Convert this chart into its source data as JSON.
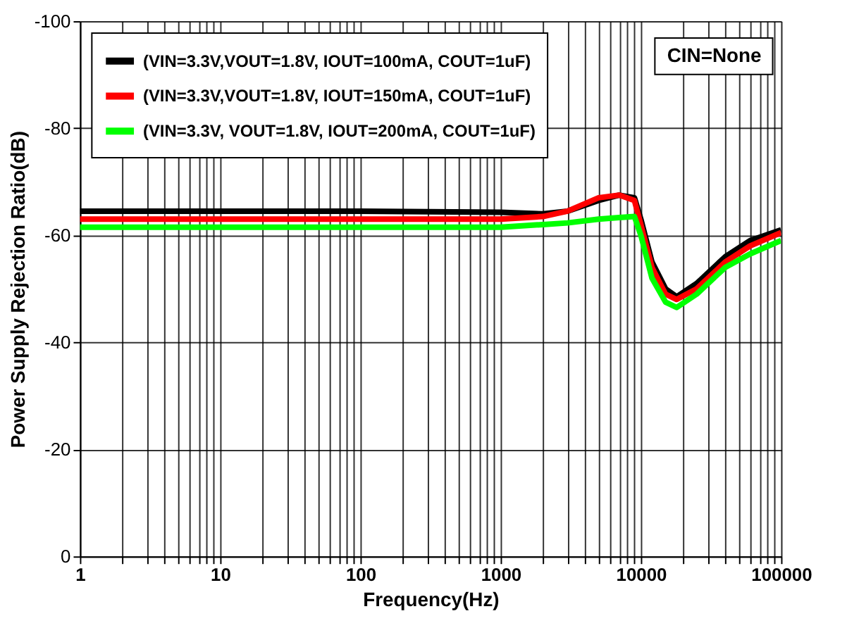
{
  "chart_data": {
    "type": "line",
    "xlabel": "Frequency(Hz)",
    "ylabel": "Power Supply Rejection Ratio(dB)",
    "log": "x",
    "grid": true,
    "legend": "top left",
    "line_style": "solid",
    "marker": "none",
    "annotations": [
      "CIN=None"
    ],
    "xlim": [
      1,
      100000
    ],
    "xticks": [
      1,
      {
        "value": 2,
        "label": null
      },
      {
        "value": 3,
        "label": null
      },
      {
        "value": 4,
        "label": null
      },
      {
        "value": 5,
        "label": null
      },
      {
        "value": 6,
        "label": null
      },
      {
        "value": 7,
        "label": null
      },
      {
        "value": 8,
        "label": null
      },
      {
        "value": 9,
        "label": null
      },
      10,
      {
        "value": 20,
        "label": null
      },
      {
        "value": 30,
        "label": null
      },
      {
        "value": 40,
        "label": null
      },
      {
        "value": 50,
        "label": null
      },
      {
        "value": 60,
        "label": null
      },
      {
        "value": 70,
        "label": null
      },
      {
        "value": 80,
        "label": null
      },
      {
        "value": 90,
        "label": null
      },
      100,
      {
        "value": 200,
        "label": null
      },
      {
        "value": 300,
        "label": null
      },
      {
        "value": 400,
        "label": null
      },
      {
        "value": 500,
        "label": null
      },
      {
        "value": 600,
        "label": null
      },
      {
        "value": 700,
        "label": null
      },
      {
        "value": 800,
        "label": null
      },
      {
        "value": 900,
        "label": null
      },
      1000,
      {
        "value": 2000,
        "label": null
      },
      {
        "value": 3000,
        "label": null
      },
      {
        "value": 4000,
        "label": null
      },
      {
        "value": 5000,
        "label": null
      },
      {
        "value": 6000,
        "label": null
      },
      {
        "value": 7000,
        "label": null
      },
      {
        "value": 8000,
        "label": null
      },
      {
        "value": 9000,
        "label": null
      },
      10000,
      {
        "value": 20000,
        "label": null
      },
      {
        "value": 30000,
        "label": null
      },
      {
        "value": 40000,
        "label": null
      },
      {
        "value": 50000,
        "label": null
      },
      {
        "value": 60000,
        "label": null
      },
      {
        "value": 70000,
        "label": null
      },
      {
        "value": 80000,
        "label": null
      },
      {
        "value": 90000,
        "label": null
      },
      100000
    ],
    "ylim": [
      0,
      -100
    ],
    "yticks": [
      0,
      -20,
      -40,
      -60,
      -80,
      -100
    ],
    "x": [
      1,
      10,
      100,
      1000,
      2000,
      3000,
      5000,
      7000,
      9000,
      10000,
      12000,
      15000,
      18000,
      25000,
      40000,
      60000,
      100000
    ],
    "series": [
      {
        "name": "(VIN=3.3V,VOUT=1.8V, IOUT=100mA, COUT=1uF)",
        "color": "#000000",
        "values": [
          -64.5,
          -64.5,
          -64.5,
          -64.3,
          -64,
          -64.5,
          -66.5,
          -67.5,
          -67,
          -63,
          -55,
          -50,
          -48.5,
          -51,
          -56,
          -59,
          -61
        ]
      },
      {
        "name": "(VIN=3.3V,VOUT=1.8V, IOUT=150mA, COUT=1uF)",
        "color": "#ff0000",
        "values": [
          -63,
          -63,
          -63,
          -63,
          -63.5,
          -64.5,
          -67,
          -67.5,
          -66.5,
          -62,
          -54,
          -49,
          -48,
          -50,
          -55,
          -58,
          -60.5
        ]
      },
      {
        "name": "(VIN=3.3V, VOUT=1.8V, IOUT=200mA, COUT=1uF)",
        "color": "#00ff00",
        "values": [
          -61.5,
          -61.5,
          -61.5,
          -61.5,
          -62,
          -62.3,
          -63,
          -63.3,
          -63.5,
          -60,
          -52,
          -47.5,
          -46.5,
          -49,
          -54,
          -56.5,
          -59
        ]
      }
    ]
  }
}
